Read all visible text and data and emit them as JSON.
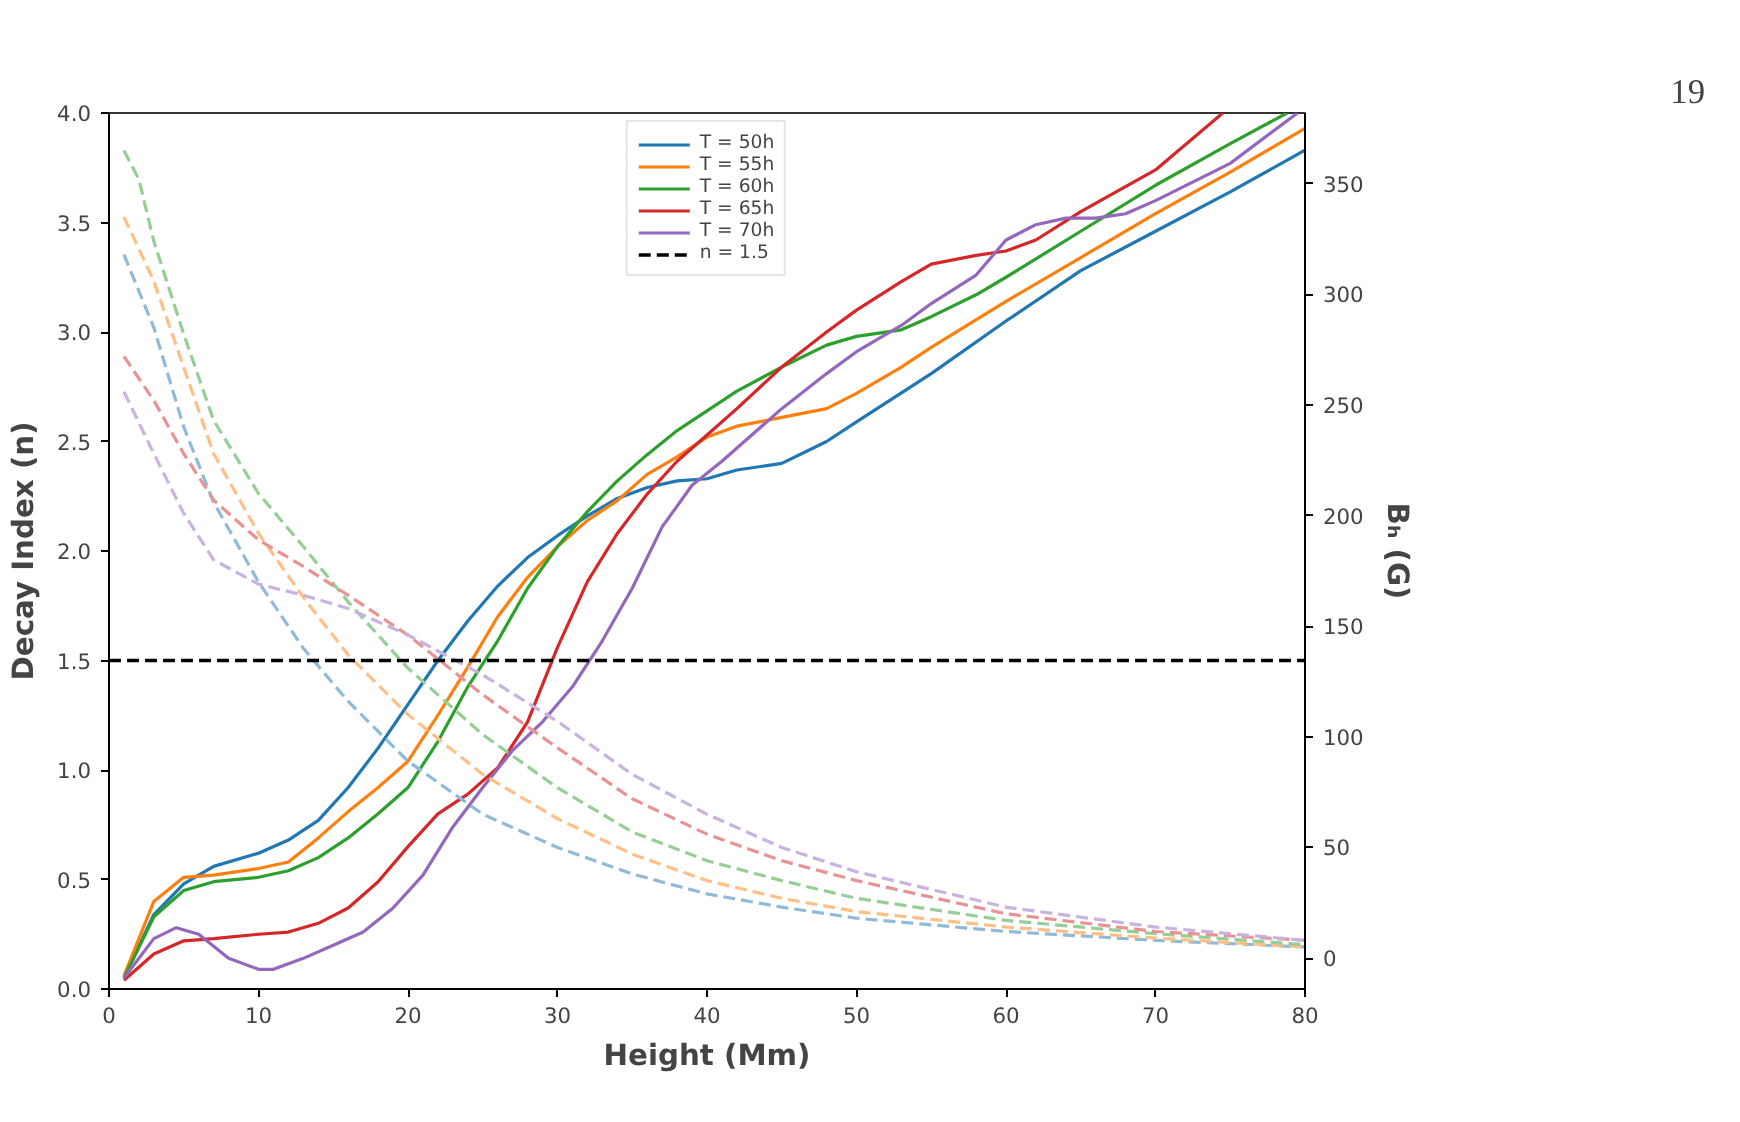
{
  "chart_data": {
    "type": "line",
    "xlabel": "Height (Mm)",
    "ylabel": "Decay Index (n)",
    "y2label": "Bₕ (G)",
    "annotations": [
      "19"
    ],
    "xlim": [
      0,
      80
    ],
    "xticks": [
      0,
      10,
      20,
      30,
      40,
      50,
      60,
      70,
      80
    ],
    "ylim": [
      0,
      4
    ],
    "yticks": [
      {
        "value": 0,
        "label": "0.0"
      },
      {
        "value": 0.5,
        "label": "0.5"
      },
      {
        "value": 1,
        "label": "1.0"
      },
      {
        "value": 1.5,
        "label": "1.5"
      },
      {
        "value": 2,
        "label": "2.0"
      },
      {
        "value": 2.5,
        "label": "2.5"
      },
      {
        "value": 3,
        "label": "3.0"
      },
      {
        "value": 3.5,
        "label": "3.5"
      },
      {
        "value": 4,
        "label": "4.0"
      }
    ],
    "y2lim": [
      -14,
      382
    ],
    "y2ticks": [
      0,
      50,
      100,
      150,
      200,
      250,
      300,
      350
    ],
    "grid": false,
    "legend": "top",
    "line_style": "solid",
    "marker": "none",
    "ref_lines": [
      {
        "axis": "y",
        "value": 1.5,
        "label": "n = 1.5",
        "color": "#000000",
        "line_style": "dashed"
      }
    ],
    "series": [
      {
        "name": "T = 50h",
        "color": "#1f77b4",
        "x": [
          1,
          3,
          5,
          7,
          10,
          12,
          14,
          16,
          18,
          20,
          22,
          24,
          26,
          28,
          30,
          32,
          34,
          36,
          38,
          40,
          42,
          45,
          48,
          50,
          55,
          60,
          65,
          70,
          75,
          80
        ],
        "values": [
          0.05,
          0.34,
          0.48,
          0.56,
          0.62,
          0.68,
          0.77,
          0.92,
          1.1,
          1.3,
          1.5,
          1.68,
          1.84,
          1.97,
          2.07,
          2.16,
          2.24,
          2.29,
          2.32,
          2.33,
          2.37,
          2.4,
          2.5,
          2.59,
          2.81,
          3.05,
          3.28,
          3.46,
          3.64,
          3.83
        ]
      },
      {
        "name": "T = 55h",
        "color": "#ff7f0e",
        "x": [
          1,
          3,
          5,
          7,
          10,
          12,
          14,
          16,
          18,
          20,
          22,
          24,
          26,
          28,
          30,
          32,
          34,
          36,
          38,
          40,
          42,
          45,
          48,
          50,
          53,
          55,
          60,
          65,
          70,
          75,
          80
        ],
        "values": [
          0.06,
          0.4,
          0.51,
          0.52,
          0.55,
          0.58,
          0.69,
          0.81,
          0.92,
          1.04,
          1.25,
          1.47,
          1.7,
          1.88,
          2.02,
          2.14,
          2.23,
          2.35,
          2.43,
          2.52,
          2.57,
          2.61,
          2.65,
          2.72,
          2.84,
          2.93,
          3.14,
          3.34,
          3.54,
          3.73,
          3.93
        ]
      },
      {
        "name": "T = 60h",
        "color": "#2ca02c",
        "x": [
          1,
          3,
          5,
          7,
          10,
          12,
          14,
          16,
          18,
          20,
          22,
          24,
          26,
          28,
          30,
          32,
          34,
          36,
          38,
          40,
          42,
          45,
          48,
          50,
          53,
          55,
          58,
          60,
          65,
          70,
          75,
          78.8
        ],
        "values": [
          0.05,
          0.33,
          0.45,
          0.49,
          0.51,
          0.54,
          0.6,
          0.69,
          0.8,
          0.92,
          1.13,
          1.38,
          1.59,
          1.83,
          2.02,
          2.18,
          2.32,
          2.44,
          2.55,
          2.64,
          2.73,
          2.84,
          2.94,
          2.98,
          3.01,
          3.07,
          3.17,
          3.25,
          3.46,
          3.67,
          3.86,
          4.0
        ]
      },
      {
        "name": "T = 65h",
        "color": "#d62728",
        "x": [
          1,
          3,
          5,
          7,
          10,
          12,
          14,
          16,
          18,
          20,
          22,
          24,
          26,
          28,
          30,
          32,
          34,
          36,
          38,
          40,
          42,
          45,
          48,
          50,
          53,
          55,
          58,
          60,
          62,
          65,
          70,
          74.5
        ],
        "values": [
          0.04,
          0.16,
          0.22,
          0.23,
          0.25,
          0.26,
          0.3,
          0.37,
          0.49,
          0.65,
          0.8,
          0.89,
          1.01,
          1.22,
          1.56,
          1.86,
          2.08,
          2.26,
          2.41,
          2.53,
          2.65,
          2.84,
          3.0,
          3.1,
          3.23,
          3.31,
          3.35,
          3.37,
          3.42,
          3.55,
          3.74,
          4.0
        ]
      },
      {
        "name": "T = 70h",
        "color": "#9467bd",
        "x": [
          1,
          3,
          4.5,
          6,
          8,
          10,
          11,
          13,
          15,
          17,
          19,
          21,
          23,
          25,
          27,
          29,
          31,
          33,
          35,
          37,
          39,
          41,
          42.5,
          45,
          48,
          50,
          53,
          55,
          58,
          60,
          62,
          64,
          66,
          68,
          70,
          75,
          79.5
        ],
        "values": [
          0.05,
          0.23,
          0.28,
          0.25,
          0.14,
          0.09,
          0.09,
          0.14,
          0.2,
          0.26,
          0.37,
          0.52,
          0.74,
          0.92,
          1.09,
          1.22,
          1.38,
          1.59,
          1.83,
          2.11,
          2.3,
          2.41,
          2.5,
          2.65,
          2.81,
          2.91,
          3.03,
          3.13,
          3.26,
          3.42,
          3.49,
          3.52,
          3.52,
          3.54,
          3.6,
          3.77,
          4.0
        ]
      },
      {
        "color": "#8fbbd9",
        "axis": "y2",
        "line_style": "dashed",
        "x": [
          1,
          3,
          5,
          7,
          10,
          13,
          16,
          20,
          25,
          30,
          35,
          40,
          45,
          50,
          60,
          70,
          80
        ],
        "values": [
          318,
          285,
          240,
          206,
          170,
          140,
          116,
          89,
          65,
          50,
          38,
          29,
          23,
          18,
          12,
          8,
          5
        ]
      },
      {
        "color": "#ffbf86",
        "axis": "y2",
        "line_style": "dashed",
        "x": [
          1,
          3,
          5,
          7,
          10,
          13,
          16,
          20,
          25,
          30,
          35,
          40,
          45,
          50,
          60,
          70,
          80
        ],
        "values": [
          335,
          306,
          267,
          228,
          192,
          163,
          137,
          110,
          83,
          63,
          47,
          35,
          27,
          21,
          14,
          9,
          5
        ]
      },
      {
        "color": "#95cf95",
        "axis": "y2",
        "line_style": "dashed",
        "x": [
          1,
          2,
          3,
          5,
          7,
          10,
          13,
          16,
          20,
          25,
          30,
          35,
          40,
          45,
          50,
          60,
          70,
          80
        ],
        "values": [
          365,
          352,
          324,
          282,
          243,
          210,
          186,
          161,
          131,
          101,
          77,
          57,
          44,
          35,
          27,
          17,
          11,
          6
        ]
      },
      {
        "color": "#ea9293",
        "axis": "y2",
        "line_style": "dashed",
        "x": [
          1,
          3,
          5,
          7,
          10,
          13,
          16,
          20,
          25,
          30,
          35,
          40,
          45,
          50,
          60,
          70,
          80
        ],
        "values": [
          272,
          252,
          228,
          207,
          189,
          177,
          164,
          146,
          119,
          95,
          72,
          56,
          44,
          35,
          20,
          12,
          8
        ]
      },
      {
        "color": "#c9b3de",
        "axis": "y2",
        "line_style": "dashed",
        "x": [
          1,
          3,
          5,
          7,
          10,
          13,
          16,
          20,
          25,
          30,
          35,
          40,
          45,
          50,
          60,
          70,
          80
        ],
        "values": [
          256,
          228,
          201,
          180,
          169,
          164,
          158,
          146,
          128,
          107,
          83,
          65,
          50,
          39,
          23,
          14,
          8
        ]
      }
    ]
  }
}
